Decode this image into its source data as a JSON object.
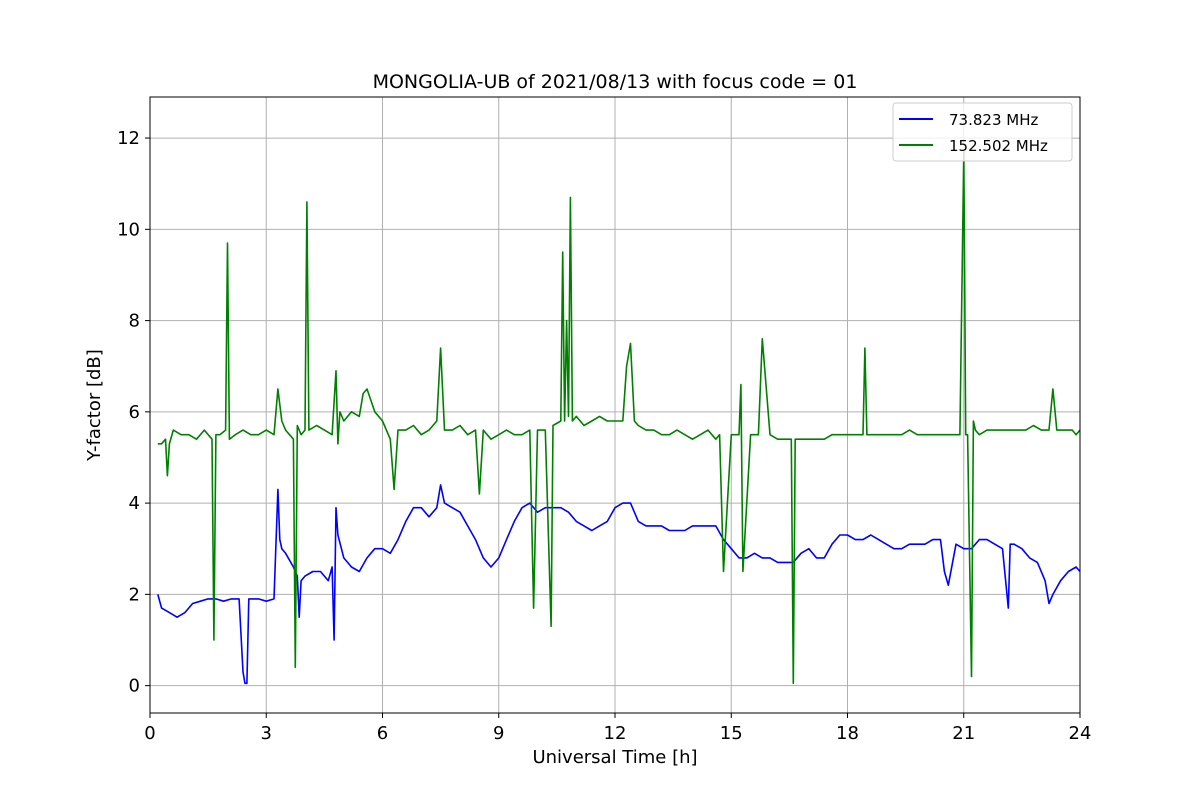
{
  "chart_data": {
    "type": "line",
    "title": "MONGOLIA-UB of 2021/08/13 with focus code = 01",
    "xlabel": "Universal Time [h]",
    "ylabel": "Y-factor [dB]",
    "xlim": [
      0,
      24
    ],
    "ylim": [
      -0.6,
      12.9
    ],
    "xticks": [
      0,
      3,
      6,
      9,
      12,
      15,
      18,
      21,
      24
    ],
    "yticks": [
      0,
      2,
      4,
      6,
      8,
      10,
      12
    ],
    "grid": true,
    "legend_position": "top-right",
    "series": [
      {
        "name": "73.823 MHz",
        "color": "#0000ff",
        "x": [
          0.2,
          0.3,
          0.5,
          0.7,
          0.9,
          1.1,
          1.3,
          1.5,
          1.7,
          1.9,
          2.1,
          2.3,
          2.4,
          2.45,
          2.5,
          2.55,
          2.6,
          2.8,
          3.0,
          3.2,
          3.3,
          3.35,
          3.4,
          3.5,
          3.7,
          3.8,
          3.85,
          3.9,
          4.0,
          4.2,
          4.4,
          4.5,
          4.6,
          4.7,
          4.75,
          4.8,
          4.85,
          5.0,
          5.2,
          5.4,
          5.6,
          5.8,
          6.0,
          6.2,
          6.4,
          6.6,
          6.8,
          7.0,
          7.2,
          7.4,
          7.5,
          7.6,
          7.8,
          8.0,
          8.2,
          8.4,
          8.6,
          8.8,
          9.0,
          9.2,
          9.4,
          9.6,
          9.8,
          10.0,
          10.2,
          10.4,
          10.6,
          10.8,
          11.0,
          11.2,
          11.4,
          11.6,
          11.8,
          12.0,
          12.2,
          12.4,
          12.6,
          12.8,
          13.0,
          13.2,
          13.4,
          13.6,
          13.8,
          14.0,
          14.2,
          14.4,
          14.6,
          14.8,
          15.0,
          15.2,
          15.4,
          15.6,
          15.8,
          16.0,
          16.2,
          16.4,
          16.6,
          16.8,
          17.0,
          17.2,
          17.4,
          17.6,
          17.8,
          18.0,
          18.2,
          18.4,
          18.6,
          18.8,
          19.0,
          19.2,
          19.4,
          19.6,
          19.8,
          20.0,
          20.2,
          20.4,
          20.5,
          20.6,
          20.8,
          21.0,
          21.2,
          21.4,
          21.6,
          21.8,
          22.0,
          22.15,
          22.2,
          22.3,
          22.5,
          22.7,
          22.9,
          23.1,
          23.2,
          23.3,
          23.5,
          23.7,
          23.9,
          24.0
        ],
        "y": [
          2.0,
          1.7,
          1.6,
          1.5,
          1.6,
          1.8,
          1.85,
          1.9,
          1.9,
          1.85,
          1.9,
          1.9,
          0.3,
          0.05,
          0.05,
          1.9,
          1.9,
          1.9,
          1.85,
          1.9,
          4.3,
          3.2,
          3.0,
          2.9,
          2.6,
          2.4,
          1.5,
          2.3,
          2.4,
          2.5,
          2.5,
          2.4,
          2.3,
          2.6,
          1.0,
          3.9,
          3.3,
          2.8,
          2.6,
          2.5,
          2.8,
          3.0,
          3.0,
          2.9,
          3.2,
          3.6,
          3.9,
          3.9,
          3.7,
          3.9,
          4.4,
          4.0,
          3.9,
          3.8,
          3.5,
          3.2,
          2.8,
          2.6,
          2.8,
          3.2,
          3.6,
          3.9,
          4.0,
          3.8,
          3.9,
          3.9,
          3.9,
          3.8,
          3.6,
          3.5,
          3.4,
          3.5,
          3.6,
          3.9,
          4.0,
          4.0,
          3.6,
          3.5,
          3.5,
          3.5,
          3.4,
          3.4,
          3.4,
          3.5,
          3.5,
          3.5,
          3.5,
          3.2,
          3.0,
          2.8,
          2.8,
          2.9,
          2.8,
          2.8,
          2.7,
          2.7,
          2.7,
          2.9,
          3.0,
          2.8,
          2.8,
          3.1,
          3.3,
          3.3,
          3.2,
          3.2,
          3.3,
          3.2,
          3.1,
          3.0,
          3.0,
          3.1,
          3.1,
          3.1,
          3.2,
          3.2,
          2.5,
          2.2,
          3.1,
          3.0,
          3.0,
          3.2,
          3.2,
          3.1,
          3.0,
          1.7,
          3.1,
          3.1,
          3.0,
          2.8,
          2.7,
          2.3,
          1.8,
          2.0,
          2.3,
          2.5,
          2.6,
          2.5
        ]
      },
      {
        "name": "152.502 MHz",
        "color": "#008000",
        "x": [
          0.2,
          0.3,
          0.4,
          0.45,
          0.5,
          0.6,
          0.8,
          1.0,
          1.2,
          1.4,
          1.6,
          1.65,
          1.7,
          1.8,
          1.95,
          2.0,
          2.05,
          2.2,
          2.4,
          2.6,
          2.8,
          3.0,
          3.2,
          3.3,
          3.4,
          3.5,
          3.7,
          3.75,
          3.8,
          3.9,
          4.0,
          4.05,
          4.1,
          4.3,
          4.5,
          4.7,
          4.8,
          4.85,
          4.9,
          5.0,
          5.2,
          5.4,
          5.5,
          5.6,
          5.8,
          6.0,
          6.2,
          6.3,
          6.4,
          6.5,
          6.6,
          6.8,
          7.0,
          7.2,
          7.4,
          7.5,
          7.6,
          7.8,
          8.0,
          8.2,
          8.4,
          8.5,
          8.6,
          8.8,
          9.0,
          9.2,
          9.4,
          9.6,
          9.8,
          9.9,
          10.0,
          10.2,
          10.35,
          10.4,
          10.6,
          10.65,
          10.7,
          10.75,
          10.8,
          10.85,
          10.9,
          11.0,
          11.2,
          11.4,
          11.6,
          11.8,
          12.0,
          12.2,
          12.3,
          12.4,
          12.5,
          12.6,
          12.8,
          13.0,
          13.2,
          13.4,
          13.6,
          13.8,
          14.0,
          14.2,
          14.4,
          14.6,
          14.7,
          14.8,
          15.0,
          15.2,
          15.25,
          15.3,
          15.5,
          15.7,
          15.8,
          16.0,
          16.2,
          16.4,
          16.55,
          16.6,
          16.65,
          16.8,
          17.0,
          17.2,
          17.4,
          17.6,
          17.8,
          18.0,
          18.2,
          18.4,
          18.45,
          18.5,
          18.8,
          19.0,
          19.2,
          19.4,
          19.6,
          19.8,
          20.0,
          20.2,
          20.4,
          20.6,
          20.8,
          20.9,
          21.0,
          21.05,
          21.1,
          21.2,
          21.25,
          21.3,
          21.4,
          21.6,
          21.8,
          22.0,
          22.2,
          22.4,
          22.6,
          22.8,
          23.0,
          23.2,
          23.3,
          23.4,
          23.6,
          23.8,
          23.9,
          24.0
        ],
        "y": [
          5.3,
          5.3,
          5.4,
          4.6,
          5.3,
          5.6,
          5.5,
          5.5,
          5.4,
          5.6,
          5.4,
          1.0,
          5.5,
          5.5,
          5.6,
          9.7,
          5.4,
          5.5,
          5.6,
          5.5,
          5.5,
          5.6,
          5.5,
          6.5,
          5.8,
          5.6,
          5.4,
          0.4,
          5.7,
          5.5,
          5.6,
          10.6,
          5.6,
          5.7,
          5.6,
          5.5,
          6.9,
          5.3,
          6.0,
          5.8,
          6.0,
          5.9,
          6.4,
          6.5,
          6.0,
          5.8,
          5.4,
          4.3,
          5.6,
          5.6,
          5.6,
          5.7,
          5.5,
          5.6,
          5.8,
          7.4,
          5.6,
          5.6,
          5.7,
          5.5,
          5.6,
          4.2,
          5.6,
          5.4,
          5.5,
          5.6,
          5.5,
          5.5,
          5.6,
          1.7,
          5.6,
          5.6,
          1.3,
          5.7,
          5.8,
          9.5,
          5.8,
          8.0,
          5.9,
          10.7,
          5.8,
          5.9,
          5.7,
          5.8,
          5.9,
          5.8,
          5.8,
          5.8,
          7.0,
          7.5,
          5.8,
          5.7,
          5.6,
          5.6,
          5.5,
          5.5,
          5.6,
          5.5,
          5.4,
          5.5,
          5.6,
          5.4,
          5.5,
          2.5,
          5.5,
          5.5,
          6.6,
          2.5,
          5.5,
          5.5,
          7.6,
          5.5,
          5.4,
          5.4,
          5.4,
          0.05,
          5.4,
          5.4,
          5.4,
          5.4,
          5.4,
          5.5,
          5.5,
          5.5,
          5.5,
          5.5,
          7.4,
          5.5,
          5.5,
          5.5,
          5.5,
          5.5,
          5.6,
          5.5,
          5.5,
          5.5,
          5.5,
          5.5,
          5.5,
          5.5,
          11.7,
          5.5,
          5.5,
          0.2,
          5.8,
          5.6,
          5.5,
          5.6,
          5.6,
          5.6,
          5.6,
          5.6,
          5.6,
          5.7,
          5.6,
          5.6,
          6.5,
          5.6,
          5.6,
          5.6,
          5.5,
          5.6
        ]
      }
    ]
  }
}
